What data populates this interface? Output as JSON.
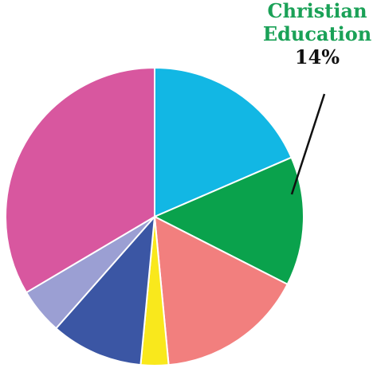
{
  "chart_data": {
    "type": "pie",
    "slices": [
      {
        "value": 18.5,
        "color": "#12b7e4"
      },
      {
        "value": 14,
        "color": "#0aa24c",
        "label_line1": "Christian",
        "label_line2": "Education",
        "label_value": "14%"
      },
      {
        "value": 16,
        "color": "#f27f7e"
      },
      {
        "value": 3,
        "color": "#f9e81c"
      },
      {
        "value": 10,
        "color": "#3b56a4"
      },
      {
        "value": 5,
        "color": "#9b9fd3"
      },
      {
        "value": 33.5,
        "color": "#d8579f"
      }
    ],
    "start_angle_deg": 0,
    "direction": "clockwise",
    "slice_separator": "#ffffff"
  },
  "callout": {
    "line1": "Christian",
    "line2": "Education",
    "value": "14%",
    "color": "#1aa157"
  }
}
